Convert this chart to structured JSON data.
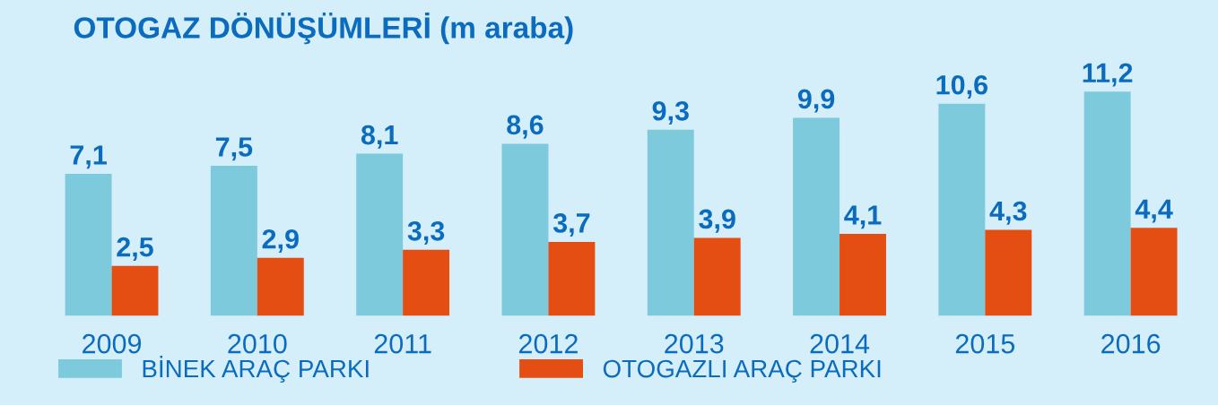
{
  "chart_data": {
    "type": "bar",
    "title": "OTOGAZ DÖNÜŞÜMLERİ (m araba)",
    "categories": [
      "2009",
      "2010",
      "2011",
      "2012",
      "2013",
      "2014",
      "2015",
      "2016"
    ],
    "series": [
      {
        "name": "BİNEK ARAÇ PARKI",
        "color": "#7dcadc",
        "values": [
          7.1,
          7.5,
          8.1,
          8.6,
          9.3,
          9.9,
          10.6,
          11.2
        ],
        "value_labels": [
          "7,1",
          "7,5",
          "8,1",
          "8,6",
          "9,3",
          "9,9",
          "10,6",
          "11,2"
        ]
      },
      {
        "name": "OTOGAZLI ARAÇ PARKI",
        "color": "#e54e12",
        "values": [
          2.5,
          2.9,
          3.3,
          3.7,
          3.9,
          4.1,
          4.3,
          4.4
        ],
        "value_labels": [
          "2,5",
          "2,9",
          "3,3",
          "3,7",
          "3,9",
          "4,1",
          "4,3",
          "4,4"
        ]
      }
    ],
    "tick_labels": "x",
    "legend": "bottom",
    "grid": false
  }
}
